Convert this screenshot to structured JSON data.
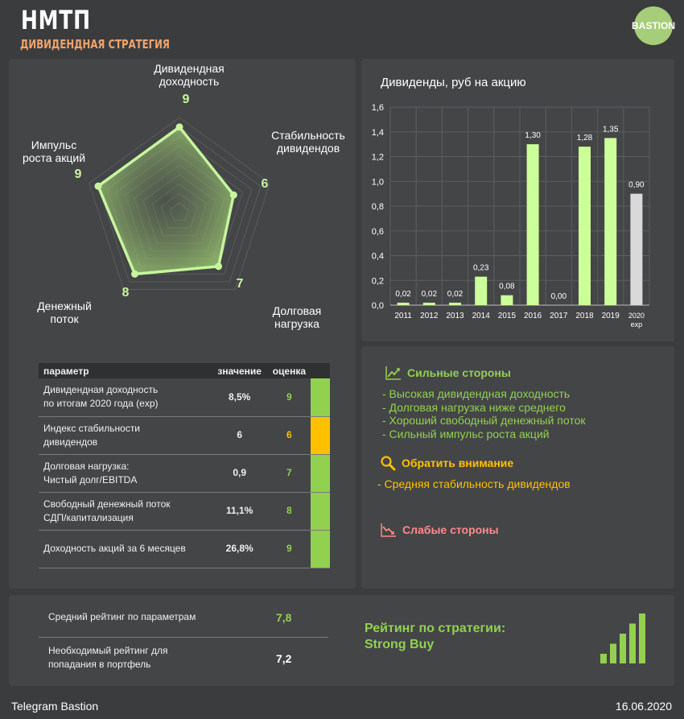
{
  "header": {
    "title": "НМТП",
    "subtitle": "ДИВИДЕНДНАЯ СТРАТЕГИЯ",
    "logo_text": "BASTION"
  },
  "radar": {
    "max": 10,
    "axes": [
      {
        "label_lines": [
          "Дивидендная",
          "доходность"
        ],
        "score": "9",
        "value": 9
      },
      {
        "label_lines": [
          "Стабильность",
          "дивидендов"
        ],
        "score": "6",
        "value": 6
      },
      {
        "label_lines": [
          "Долговая",
          "нагрузка"
        ],
        "score": "7",
        "value": 7
      },
      {
        "label_lines": [
          "Денежный",
          "поток"
        ],
        "score": "8",
        "value": 8
      },
      {
        "label_lines": [
          "Импульс",
          "роста акций"
        ],
        "score": "9",
        "value": 9
      }
    ]
  },
  "table": {
    "headers": {
      "param": "параметр",
      "value": "значение",
      "score": "оценка"
    },
    "rows": [
      {
        "name_lines": [
          "Дивидендная доходность",
          "по итогам 2020 года (exp)"
        ],
        "value": "8,5%",
        "score": "9",
        "color": "#92d050"
      },
      {
        "name_lines": [
          "Индекс стабильности",
          "дивидендов"
        ],
        "value": "6",
        "score": "6",
        "color": "#ffc000"
      },
      {
        "name_lines": [
          "Долговая нагрузка:",
          "Чистый долг/EBITDA"
        ],
        "value": "0,9",
        "score": "7",
        "color": "#92d050"
      },
      {
        "name_lines": [
          "Свободный денежный поток",
          "СДП/капитализация"
        ],
        "value": "11,1%",
        "score": "8",
        "color": "#92d050"
      },
      {
        "name_lines": [
          "Доходность акций за 6 месяцев"
        ],
        "value": "26,8%",
        "score": "9",
        "color": "#92d050"
      }
    ]
  },
  "chart_data": {
    "type": "bar",
    "title": "Дивиденды, руб на акцию",
    "categories": [
      "2011",
      "2012",
      "2013",
      "2014",
      "2015",
      "2016",
      "2017",
      "2018",
      "2019",
      "2020 exp"
    ],
    "values": [
      0.02,
      0.02,
      0.02,
      0.23,
      0.08,
      1.3,
      0.0,
      1.28,
      1.35,
      0.9
    ],
    "value_labels": [
      "0,02",
      "0,02",
      "0,02",
      "0,23",
      "0,08",
      "1,30",
      "0,00",
      "1,28",
      "1,35",
      "0,90"
    ],
    "bar_colors": [
      "#ccff99",
      "#ccff99",
      "#ccff99",
      "#ccff99",
      "#ccff99",
      "#ccff99",
      "#ccff99",
      "#ccff99",
      "#ccff99",
      "#d9d9d9"
    ],
    "ylim": [
      0,
      1.6
    ],
    "yticks": [
      "0,0",
      "0,2",
      "0,4",
      "0,6",
      "0,8",
      "1,0",
      "1,2",
      "1,4",
      "1,6"
    ],
    "grid": true
  },
  "notes": {
    "strengths_title": "Сильные стороны",
    "strengths": [
      "- Высокая дивидендная доходность",
      "- Долговая нагрузка ниже среднего",
      "- Хороший свободный денежный поток",
      "- Сильный импульс роста акций"
    ],
    "attention_title": "Обратить внимание",
    "attention": [
      "- Средняя стабильность дивидендов"
    ],
    "weaknesses_title": "Слабые стороны",
    "colors": {
      "strengths": "#92d050",
      "attention": "#ffc000",
      "weaknesses": "#ff8a8a"
    }
  },
  "rating": {
    "avg_label": "Средний рейтинг по параметрам",
    "avg_value": "7,8",
    "req_label_lines": [
      "Необходимый рейтинг для",
      "попадания в портфель"
    ],
    "req_value": "7,2",
    "strategy_title": "Рейтинг по стратегии:",
    "strategy_value": "Strong Buy",
    "signal_levels": 5,
    "signal_active": 5
  },
  "footer": {
    "left": "Telegram Bastion",
    "right": "16.06.2020"
  }
}
